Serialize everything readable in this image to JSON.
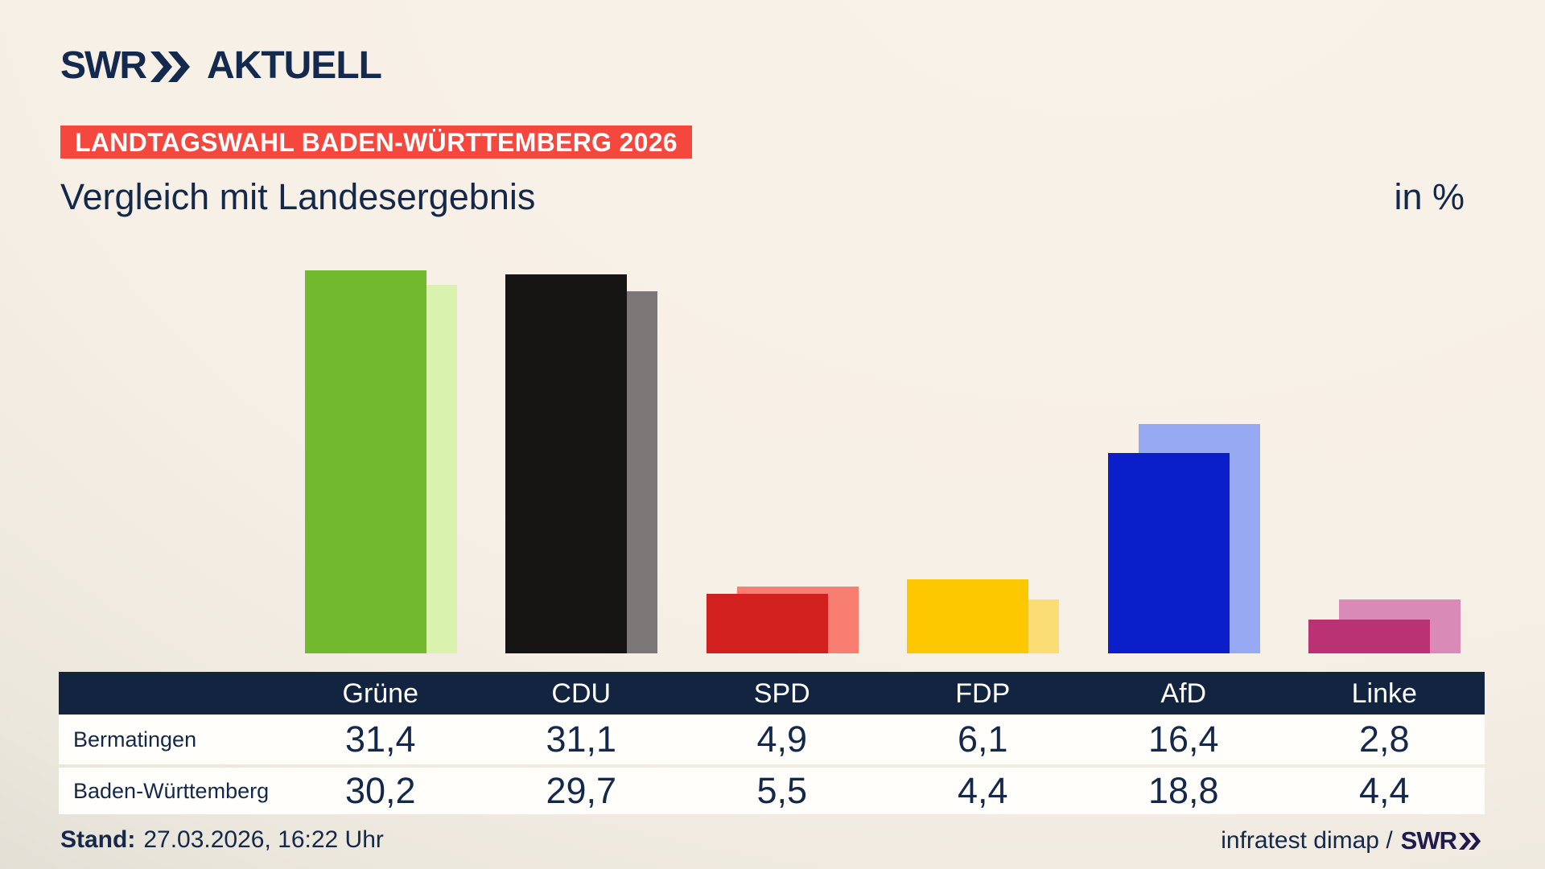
{
  "header": {
    "logo_brand": "SWR",
    "logo_suffix": "AKTUELL",
    "banner": "LANDTAGSWAHL BADEN-WÜRTTEMBERG 2026",
    "title": "Vergleich mit Landesergebnis",
    "unit_label": "in %"
  },
  "colors": {
    "navy_text": "#13284a",
    "banner_red": "#f4473d",
    "table_header_bg": "#122440",
    "table_row_bg": "#fffefb",
    "footer_brand": "#201a4e",
    "background_light": "#f9f2e8",
    "background_shadow": "#d2cfc7"
  },
  "chart_data": {
    "type": "bar",
    "title": "Vergleich mit Landesergebnis",
    "unit": "in %",
    "categories": [
      "Grüne",
      "CDU",
      "SPD",
      "FDP",
      "AfD",
      "Linke"
    ],
    "series": [
      {
        "name": "Bermatingen",
        "values": [
          31.4,
          31.1,
          4.9,
          6.1,
          16.4,
          2.8
        ],
        "colors": [
          "#72b92d",
          "#171513",
          "#d2201e",
          "#fdc800",
          "#0a1fc9",
          "#bb3274"
        ]
      },
      {
        "name": "Baden-Württemberg",
        "values": [
          30.2,
          29.7,
          5.5,
          4.4,
          18.8,
          4.4
        ],
        "colors": [
          "#d9f3ae",
          "#7b7777",
          "#f97e72",
          "#fbdd76",
          "#98a9f3",
          "#da8ab7"
        ]
      }
    ],
    "ylim": [
      0,
      33.5
    ],
    "grid": false,
    "axis_labels": "none (values shown in table below chart)",
    "legend_position": "table rows act as legend"
  },
  "table": {
    "columns": [
      "Grüne",
      "CDU",
      "SPD",
      "FDP",
      "AfD",
      "Linke"
    ],
    "rows": [
      {
        "label": "Bermatingen",
        "values": [
          "31,4",
          "31,1",
          "4,9",
          "6,1",
          "16,4",
          "2,8"
        ]
      },
      {
        "label": "Baden-Württemberg",
        "values": [
          "30,2",
          "29,7",
          "5,5",
          "4,4",
          "18,8",
          "4,4"
        ]
      }
    ]
  },
  "footer": {
    "stand_label": "Stand:",
    "stand_value": "27.03.2026, 16:22 Uhr",
    "source": "infratest dimap /",
    "source_brand": "SWR"
  }
}
